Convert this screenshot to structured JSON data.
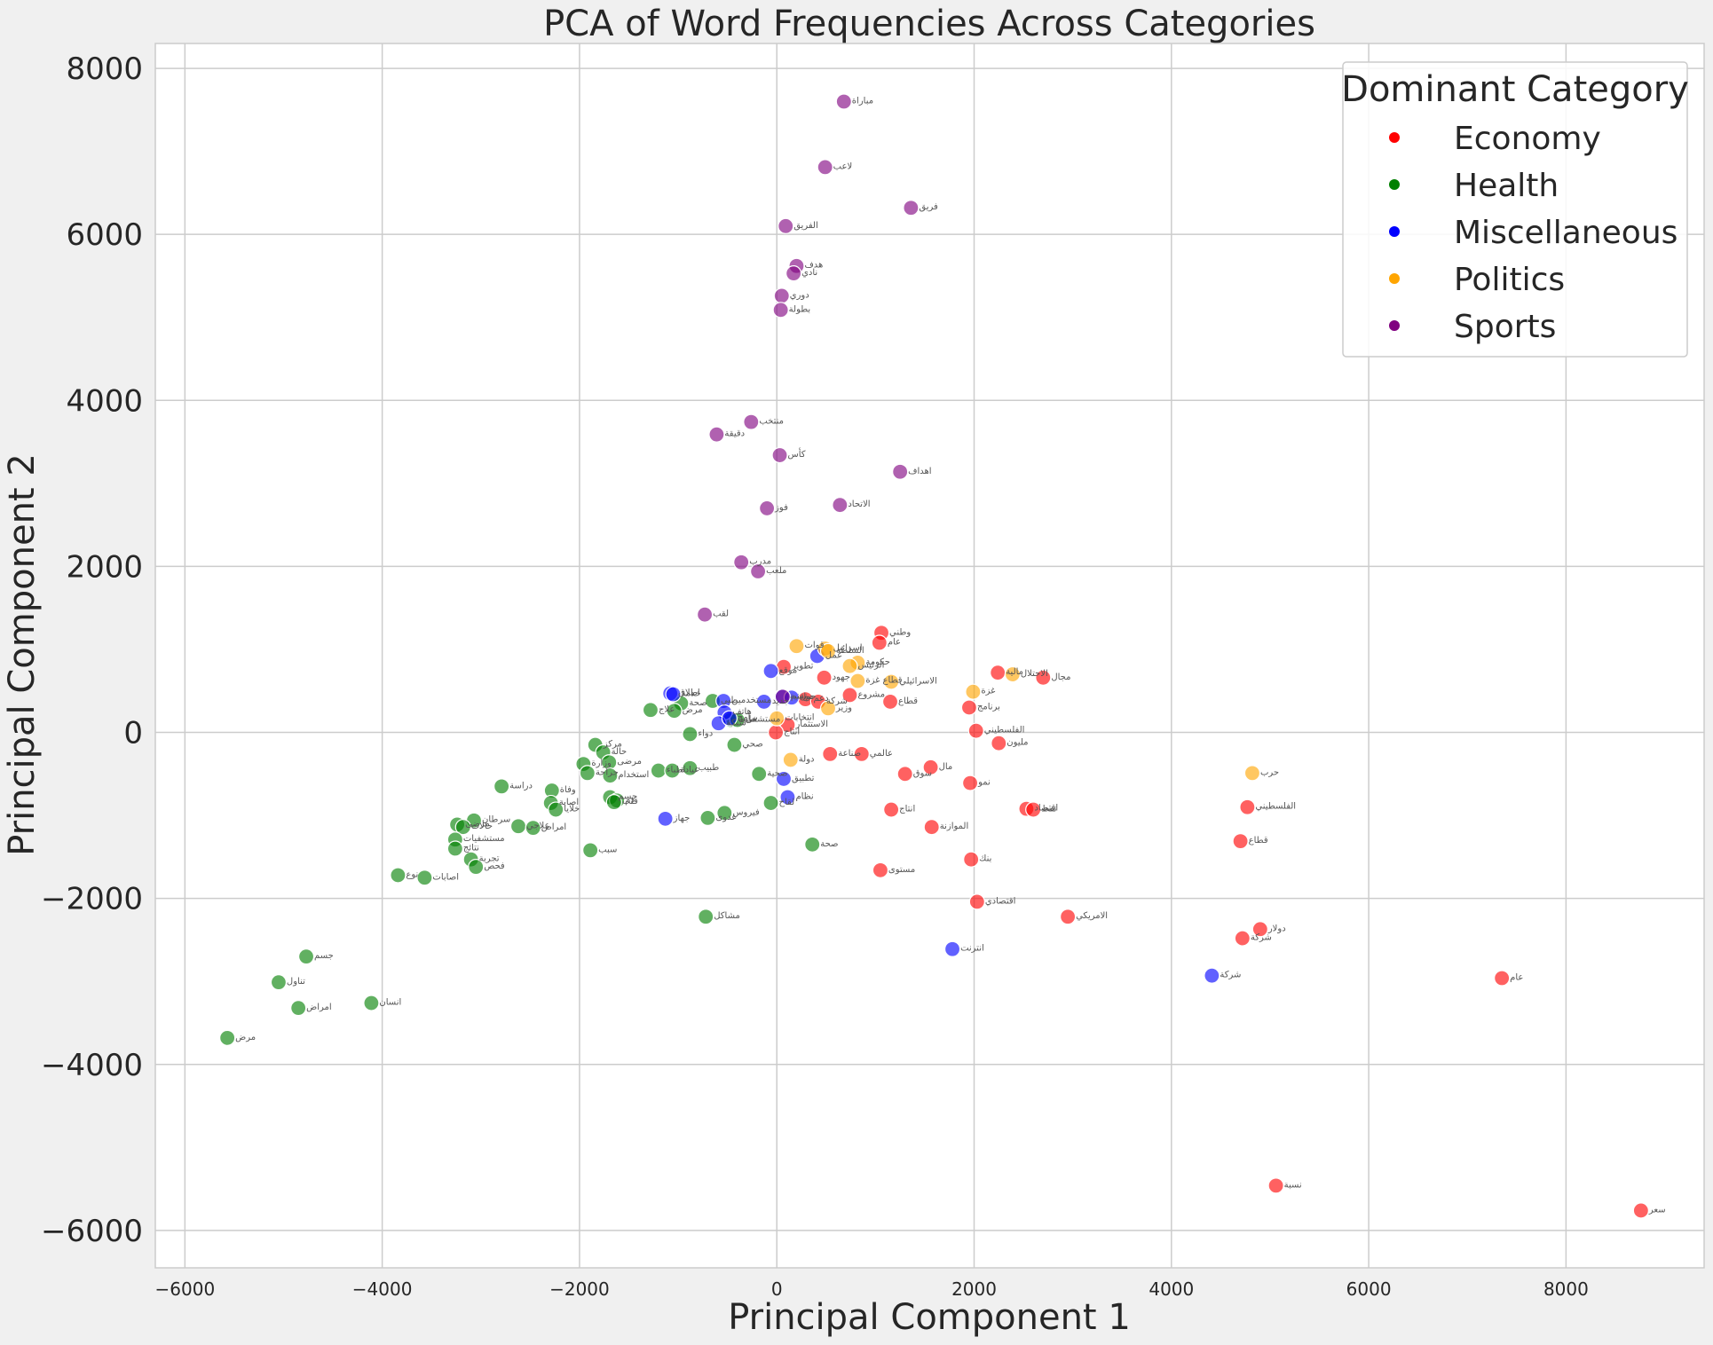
{
  "chart_data": {
    "type": "scatter",
    "title": "PCA of Word Frequencies Across Categories",
    "xlabel": "Principal Component 1",
    "ylabel": "Principal Component 2",
    "xlim": [
      -6300,
      9400
    ],
    "ylim": [
      -6450,
      8300
    ],
    "xticks": [
      -6000,
      -4000,
      -2000,
      0,
      2000,
      4000,
      6000,
      8000
    ],
    "yticks": [
      -6000,
      -4000,
      -2000,
      0,
      2000,
      4000,
      6000,
      8000
    ],
    "grid": true,
    "legend": {
      "title": "Dominant Category",
      "placement": "top-right",
      "entries": [
        "Economy",
        "Health",
        "Miscellaneous",
        "Politics",
        "Sports"
      ]
    },
    "colors": {
      "Economy": "#ff0000",
      "Health": "#008000",
      "Miscellaneous": "#0000ff",
      "Politics": "#ffa500",
      "Sports": "#800080"
    },
    "series": [
      {
        "name": "Economy",
        "points": [
          {
            "x": 1060,
            "y": 1200,
            "label": "وطني"
          },
          {
            "x": 1040,
            "y": 1080,
            "label": "عام"
          },
          {
            "x": 70,
            "y": 790,
            "label": "تطوير"
          },
          {
            "x": 2240,
            "y": 720,
            "label": "مالية"
          },
          {
            "x": 2700,
            "y": 660,
            "label": "مجال"
          },
          {
            "x": 480,
            "y": 660,
            "label": "جهود"
          },
          {
            "x": 740,
            "y": 450,
            "label": "مشروع"
          },
          {
            "x": 290,
            "y": 400,
            "label": "دعم"
          },
          {
            "x": 1150,
            "y": 370,
            "label": "قطاع"
          },
          {
            "x": 420,
            "y": 370,
            "label": "شركة"
          },
          {
            "x": 1950,
            "y": 300,
            "label": "برنامج"
          },
          {
            "x": 110,
            "y": 90,
            "label": "الاستثمار"
          },
          {
            "x": 2020,
            "y": 20,
            "label": "الفلسطيني"
          },
          {
            "x": -10,
            "y": 0,
            "label": "انتاج"
          },
          {
            "x": 2250,
            "y": -130,
            "label": "مليون"
          },
          {
            "x": 540,
            "y": -260,
            "label": "صناعة"
          },
          {
            "x": 860,
            "y": -260,
            "label": "عالمي"
          },
          {
            "x": 1560,
            "y": -420,
            "label": "مال"
          },
          {
            "x": 1300,
            "y": -500,
            "label": "سوق"
          },
          {
            "x": 1960,
            "y": -610,
            "label": "نمو"
          },
          {
            "x": 2530,
            "y": -920,
            "label": "اقتصاد"
          },
          {
            "x": 2600,
            "y": -930,
            "label": "نفط"
          },
          {
            "x": 1160,
            "y": -930,
            "label": "انتاج"
          },
          {
            "x": 4770,
            "y": -900,
            "label": "الفلسطيني"
          },
          {
            "x": 1570,
            "y": -1140,
            "label": "الموازنة"
          },
          {
            "x": 4700,
            "y": -1310,
            "label": "قطاع"
          },
          {
            "x": 1970,
            "y": -1530,
            "label": "بنك"
          },
          {
            "x": 1050,
            "y": -1660,
            "label": "مستوى"
          },
          {
            "x": 2030,
            "y": -2040,
            "label": "اقتصادي"
          },
          {
            "x": 2950,
            "y": -2220,
            "label": "الامريكي"
          },
          {
            "x": 4900,
            "y": -2370,
            "label": "دولار"
          },
          {
            "x": 4720,
            "y": -2480,
            "label": "شركة"
          },
          {
            "x": 7350,
            "y": -2960,
            "label": "عام"
          },
          {
            "x": 5060,
            "y": -5460,
            "label": "نسبة"
          },
          {
            "x": 8760,
            "y": -5760,
            "label": "سعر"
          }
        ]
      },
      {
        "name": "Health",
        "points": [
          {
            "x": -650,
            "y": 380,
            "label": "طبي"
          },
          {
            "x": -970,
            "y": 350,
            "label": "صحة"
          },
          {
            "x": -1280,
            "y": 270,
            "label": "علاج"
          },
          {
            "x": -1040,
            "y": 260,
            "label": "مرض"
          },
          {
            "x": -470,
            "y": 150,
            "label": "طبية"
          },
          {
            "x": -400,
            "y": 150,
            "label": "مستشفى"
          },
          {
            "x": -880,
            "y": -20,
            "label": "دواء"
          },
          {
            "x": -430,
            "y": -150,
            "label": "صحي"
          },
          {
            "x": -1840,
            "y": -150,
            "label": "مركز"
          },
          {
            "x": -1760,
            "y": -240,
            "label": "حالة"
          },
          {
            "x": -1700,
            "y": -360,
            "label": "مرضى"
          },
          {
            "x": -1960,
            "y": -380,
            "label": "وزارة"
          },
          {
            "x": -1200,
            "y": -460,
            "label": "اطباء"
          },
          {
            "x": -1060,
            "y": -460,
            "label": "عيادة"
          },
          {
            "x": -880,
            "y": -430,
            "label": "طبيب"
          },
          {
            "x": -1920,
            "y": -490,
            "label": "جراحة"
          },
          {
            "x": -1690,
            "y": -520,
            "label": "استخدام"
          },
          {
            "x": -180,
            "y": -500,
            "label": "صحية"
          },
          {
            "x": -2790,
            "y": -650,
            "label": "دراسة"
          },
          {
            "x": -2280,
            "y": -700,
            "label": "وفاة"
          },
          {
            "x": -1690,
            "y": -780,
            "label": "جسم"
          },
          {
            "x": -1620,
            "y": -820,
            "label": "دم"
          },
          {
            "x": -1650,
            "y": -840,
            "label": "قلب"
          },
          {
            "x": -2290,
            "y": -850,
            "label": "اصابة"
          },
          {
            "x": -2240,
            "y": -930,
            "label": "خلايا"
          },
          {
            "x": -530,
            "y": -970,
            "label": "فيروس"
          },
          {
            "x": -60,
            "y": -850,
            "label": "لقاح"
          },
          {
            "x": -700,
            "y": -1030,
            "label": "عدوى"
          },
          {
            "x": -3070,
            "y": -1060,
            "label": "سرطان"
          },
          {
            "x": -3240,
            "y": -1110,
            "label": "مرضى"
          },
          {
            "x": -3180,
            "y": -1140,
            "label": "حالات"
          },
          {
            "x": -2620,
            "y": -1130,
            "label": "علاجي"
          },
          {
            "x": -2470,
            "y": -1150,
            "label": "امراض"
          },
          {
            "x": -3260,
            "y": -1290,
            "label": "مستشفيات"
          },
          {
            "x": -3260,
            "y": -1400,
            "label": "نتائج"
          },
          {
            "x": 360,
            "y": -1350,
            "label": "صحة"
          },
          {
            "x": -1890,
            "y": -1420,
            "label": "سبب"
          },
          {
            "x": -3100,
            "y": -1530,
            "label": "تجربة"
          },
          {
            "x": -3050,
            "y": -1620,
            "label": "فحص"
          },
          {
            "x": -3840,
            "y": -1720,
            "label": "نوع"
          },
          {
            "x": -3570,
            "y": -1750,
            "label": "اصابات"
          },
          {
            "x": -720,
            "y": -2220,
            "label": "مشاكل"
          },
          {
            "x": -4770,
            "y": -2700,
            "label": "جسم"
          },
          {
            "x": -5050,
            "y": -3010,
            "label": "تناول"
          },
          {
            "x": -4850,
            "y": -3320,
            "label": "امراض"
          },
          {
            "x": -4110,
            "y": -3260,
            "label": "انسان"
          },
          {
            "x": -5570,
            "y": -3680,
            "label": "مرض"
          }
        ]
      },
      {
        "name": "Miscellaneous",
        "points": [
          {
            "x": 410,
            "y": 920,
            "label": "عمل"
          },
          {
            "x": -60,
            "y": 740,
            "label": "موقع"
          },
          {
            "x": -1080,
            "y": 470,
            "label": "اطلاق"
          },
          {
            "x": -1050,
            "y": 460,
            "label": "خدمة"
          },
          {
            "x": -540,
            "y": 380,
            "label": "مستخدمين"
          },
          {
            "x": -130,
            "y": 370,
            "label": "جديد"
          },
          {
            "x": 50,
            "y": 430,
            "label": "تقنية"
          },
          {
            "x": 150,
            "y": 420,
            "label": "حول"
          },
          {
            "x": -530,
            "y": 240,
            "label": "هاتف"
          },
          {
            "x": -590,
            "y": 110,
            "label": "شبكة"
          },
          {
            "x": -480,
            "y": 170,
            "label": "برامج"
          },
          {
            "x": 70,
            "y": -560,
            "label": "تطبيق"
          },
          {
            "x": 110,
            "y": -780,
            "label": "نظام"
          },
          {
            "x": -1130,
            "y": -1040,
            "label": "جهاز"
          },
          {
            "x": 1780,
            "y": -2610,
            "label": "انترنت"
          },
          {
            "x": 4410,
            "y": -2930,
            "label": "شركة"
          }
        ]
      },
      {
        "name": "Politics",
        "points": [
          {
            "x": 200,
            "y": 1040,
            "label": "قوات"
          },
          {
            "x": 490,
            "y": 1010,
            "label": "اسرائيل"
          },
          {
            "x": 520,
            "y": 980,
            "label": "السلطة"
          },
          {
            "x": 820,
            "y": 840,
            "label": "حكومة"
          },
          {
            "x": 740,
            "y": 800,
            "label": "الرئيس"
          },
          {
            "x": 820,
            "y": 620,
            "label": "قطاع غزة"
          },
          {
            "x": 1160,
            "y": 610,
            "label": "الاسرائيلي"
          },
          {
            "x": 2390,
            "y": 700,
            "label": "الاحتلال"
          },
          {
            "x": 1990,
            "y": 490,
            "label": "غزة"
          },
          {
            "x": 520,
            "y": 290,
            "label": "وزير"
          },
          {
            "x": 0,
            "y": 170,
            "label": "انتخابات"
          },
          {
            "x": 140,
            "y": -330,
            "label": "دولة"
          },
          {
            "x": 4820,
            "y": -490,
            "label": "حرب"
          }
        ]
      },
      {
        "name": "Sports",
        "points": [
          {
            "x": 680,
            "y": 7600,
            "label": "مباراة"
          },
          {
            "x": 490,
            "y": 6810,
            "label": "لاعب"
          },
          {
            "x": 1360,
            "y": 6320,
            "label": "فريق"
          },
          {
            "x": 90,
            "y": 6100,
            "label": "الفريق"
          },
          {
            "x": 200,
            "y": 5620,
            "label": "هدف"
          },
          {
            "x": 170,
            "y": 5530,
            "label": "نادي"
          },
          {
            "x": 50,
            "y": 5260,
            "label": "دوري"
          },
          {
            "x": 40,
            "y": 5090,
            "label": "بطولة"
          },
          {
            "x": -260,
            "y": 3740,
            "label": "منتخب"
          },
          {
            "x": -610,
            "y": 3590,
            "label": "دقيقة"
          },
          {
            "x": 30,
            "y": 3340,
            "label": "كأس"
          },
          {
            "x": 1250,
            "y": 3140,
            "label": "اهداف"
          },
          {
            "x": 640,
            "y": 2740,
            "label": "الاتحاد"
          },
          {
            "x": -100,
            "y": 2700,
            "label": "فوز"
          },
          {
            "x": -360,
            "y": 2050,
            "label": "مدرب"
          },
          {
            "x": -190,
            "y": 1940,
            "label": "ملعب"
          },
          {
            "x": -730,
            "y": 1420,
            "label": "لقب"
          },
          {
            "x": 60,
            "y": 430,
            "label": "موسم"
          }
        ]
      }
    ]
  }
}
